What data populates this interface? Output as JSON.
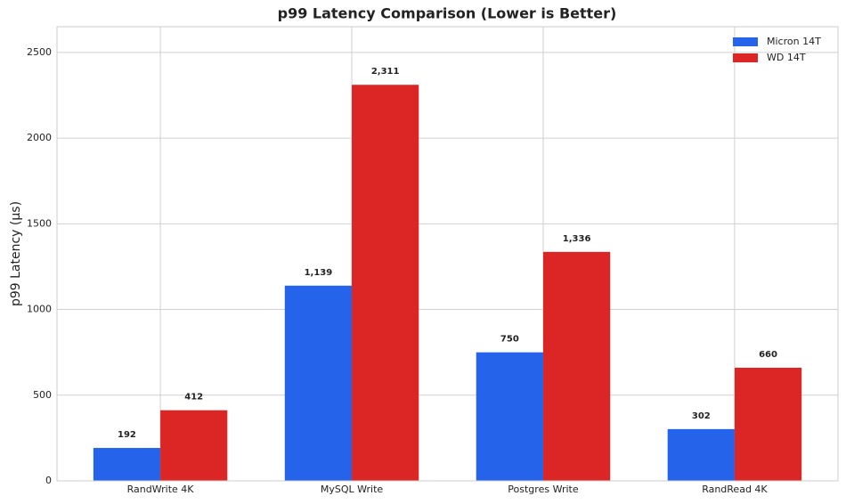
{
  "chart_data": {
    "type": "bar",
    "title": "p99 Latency Comparison (Lower is Better)",
    "y_label": "p99 Latency (µs)",
    "categories": [
      "RandWrite 4K",
      "MySQL Write",
      "Postgres Write",
      "RandRead 4K"
    ],
    "series": [
      {
        "name": "Micron 14T",
        "color": "#2563eb",
        "values": [
          192,
          1139,
          750,
          302
        ],
        "value_labels": [
          "192",
          "1,139",
          "750",
          "302"
        ]
      },
      {
        "name": "WD 14T",
        "color": "#dc2626",
        "values": [
          412,
          2311,
          1336,
          660
        ],
        "value_labels": [
          "412",
          "2,311",
          "1,336",
          "660"
        ]
      }
    ],
    "ylim": [
      0,
      2650
    ],
    "yticks": [
      0,
      500,
      1000,
      1500,
      2000,
      2500
    ],
    "grid": true,
    "legend": "upper-right"
  }
}
